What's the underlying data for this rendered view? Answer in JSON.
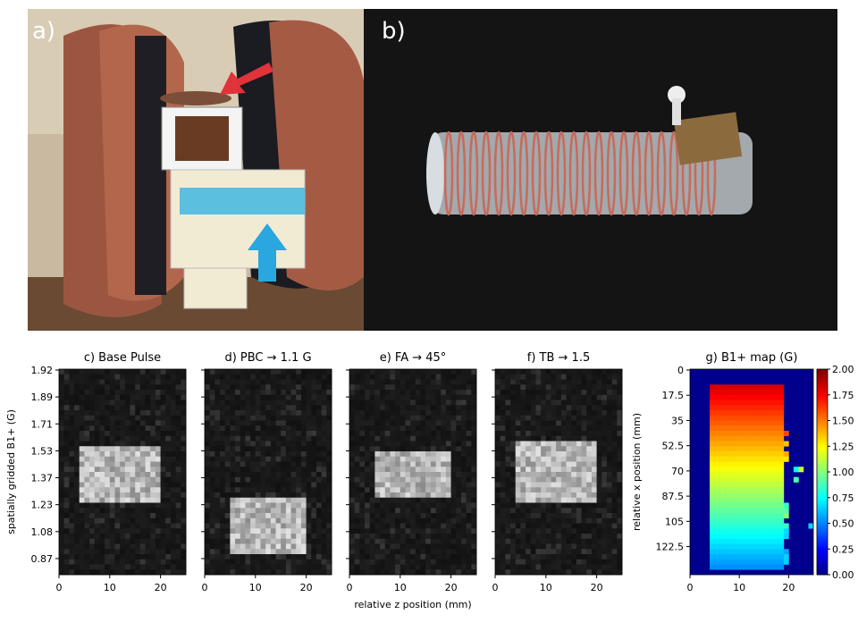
{
  "photos": {
    "a": {
      "label": "a)"
    },
    "b": {
      "label": "b)"
    }
  },
  "shared": {
    "x_ticks": [
      0,
      10,
      20
    ],
    "xlabel": "relative z position (mm)",
    "xlim": [
      0,
      25
    ]
  },
  "chart_data": [
    {
      "type": "heatmap",
      "title": "c) Base Pulse",
      "ylabel": "spatially gridded B1+ (G)",
      "y_tick_labels": [
        "1.92",
        "1.89",
        "1.71",
        "1.53",
        "1.37",
        "1.23",
        "1.08",
        "0.87"
      ],
      "colormap": "gray",
      "bright_region": {
        "z_mm": [
          4.5,
          19.5
        ],
        "y_fraction_from_top": [
          0.37,
          0.65
        ]
      }
    },
    {
      "type": "heatmap",
      "title": "d) PBC → 1.1 G",
      "colormap": "gray",
      "bright_region": {
        "z_mm": [
          5.0,
          19.5
        ],
        "y_fraction_from_top": [
          0.62,
          0.9
        ]
      }
    },
    {
      "type": "heatmap",
      "title": "e) FA → 45°",
      "colormap": "gray",
      "bright_region": {
        "z_mm": [
          5.0,
          20.0
        ],
        "y_fraction_from_top": [
          0.4,
          0.62
        ]
      }
    },
    {
      "type": "heatmap",
      "title": "f) TB → 1.5",
      "colormap": "gray",
      "bright_region": {
        "z_mm": [
          4.5,
          19.5
        ],
        "y_fraction_from_top": [
          0.35,
          0.66
        ]
      }
    },
    {
      "type": "heatmap",
      "title": "g) B1+ map (G)",
      "ylabel": "relative x position (mm)",
      "y_ticks": [
        "0",
        "17.5",
        "35",
        "52.5",
        "70",
        "87.5",
        "105",
        "122.5"
      ],
      "colormap": "jet",
      "colorbar": {
        "ticks": [
          "2.00",
          "1.75",
          "1.50",
          "1.25",
          "1.00",
          "0.75",
          "0.50",
          "0.25",
          "0.00"
        ],
        "range": [
          0,
          2
        ]
      }
    }
  ]
}
